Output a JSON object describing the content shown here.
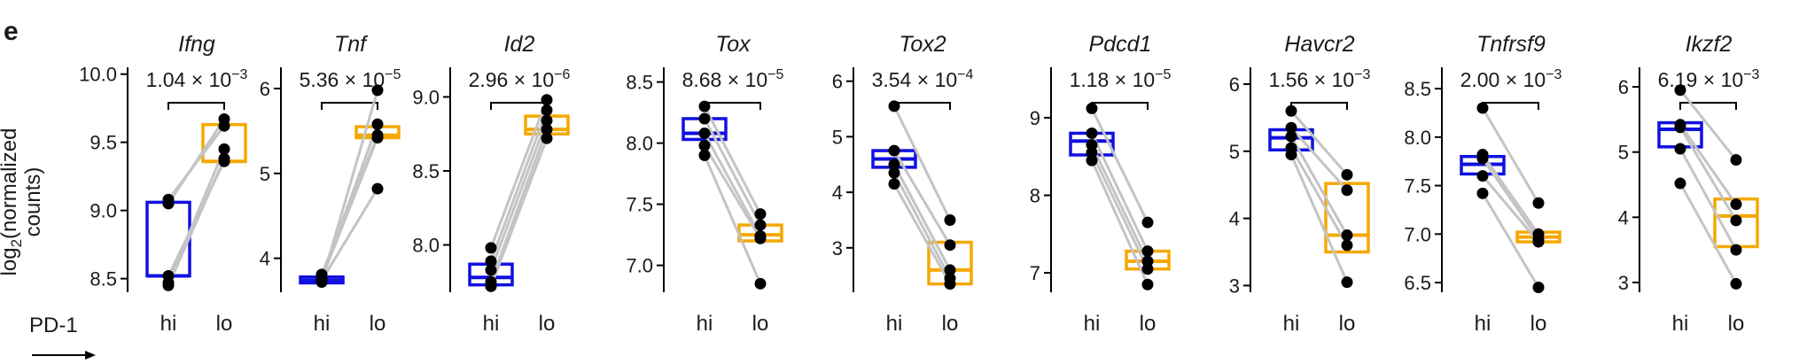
{
  "panel_label": "e",
  "ylabel_pre": "log",
  "ylabel_sub": "2",
  "ylabel_post": "(normalized",
  "ylabel_line2": "counts)",
  "group_label": "PD-1",
  "colors": {
    "hi": "#1010e0",
    "lo": "#f5a800",
    "lines": "#c4c4c4",
    "points": "#000000"
  },
  "chart_data": [
    {
      "type": "box",
      "title": "Ifng",
      "categories": [
        "hi",
        "lo"
      ],
      "ylim": [
        8.4,
        10.05
      ],
      "ticks": [
        "8.5",
        "9.0",
        "9.5",
        "10.0"
      ],
      "p_value": {
        "mantissa": "1.04",
        "times": "×",
        "base": "10",
        "exponent": "−3"
      },
      "hi": {
        "q1": 8.52,
        "median": 8.52,
        "q3": 9.06
      },
      "lo": {
        "q1": 9.36,
        "median": 9.36,
        "q3": 9.63
      },
      "pairs": [
        [
          9.08,
          9.62
        ],
        [
          9.05,
          9.67
        ],
        [
          8.47,
          9.45
        ],
        [
          8.45,
          9.38
        ],
        [
          8.52,
          9.36
        ]
      ]
    },
    {
      "type": "box",
      "title": "Tnf",
      "categories": [
        "hi",
        "lo"
      ],
      "ylim": [
        3.6,
        6.25
      ],
      "ticks": [
        "4",
        "5",
        "6"
      ],
      "p_value": {
        "mantissa": "5.36",
        "times": "×",
        "base": "10",
        "exponent": "−5"
      },
      "hi": {
        "q1": 3.71,
        "median": 3.74,
        "q3": 3.78
      },
      "lo": {
        "q1": 5.42,
        "median": 5.45,
        "q3": 5.55
      },
      "pairs": [
        [
          3.72,
          5.98
        ],
        [
          3.77,
          5.58
        ],
        [
          3.81,
          5.45
        ],
        [
          3.76,
          5.42
        ],
        [
          3.74,
          4.82
        ]
      ]
    },
    {
      "type": "box",
      "title": "Id2",
      "categories": [
        "hi",
        "lo"
      ],
      "ylim": [
        7.68,
        9.2
      ],
      "ticks": [
        "8.0",
        "8.5",
        "9.0"
      ],
      "p_value": {
        "mantissa": "2.96",
        "times": "×",
        "base": "10",
        "exponent": "−6"
      },
      "hi": {
        "q1": 7.73,
        "median": 7.78,
        "q3": 7.87
      },
      "lo": {
        "q1": 8.75,
        "median": 8.78,
        "q3": 8.87
      },
      "pairs": [
        [
          7.98,
          8.98
        ],
        [
          7.89,
          8.91
        ],
        [
          7.83,
          8.84
        ],
        [
          7.75,
          8.78
        ],
        [
          7.72,
          8.72
        ]
      ]
    },
    {
      "type": "box",
      "title": "Tox",
      "categories": [
        "hi",
        "lo"
      ],
      "ylim": [
        6.78,
        8.62
      ],
      "ticks": [
        "7.0",
        "7.5",
        "8.0",
        "8.5"
      ],
      "p_value": {
        "mantissa": "8.68",
        "times": "×",
        "base": "10",
        "exponent": "−5"
      },
      "hi": {
        "q1": 8.03,
        "median": 8.08,
        "q3": 8.2
      },
      "lo": {
        "q1": 7.2,
        "median": 7.25,
        "q3": 7.33
      },
      "pairs": [
        [
          8.3,
          7.42
        ],
        [
          8.2,
          7.33
        ],
        [
          8.08,
          7.24
        ],
        [
          7.98,
          7.22
        ],
        [
          7.9,
          6.85
        ]
      ]
    },
    {
      "type": "box",
      "title": "Tox2",
      "categories": [
        "hi",
        "lo"
      ],
      "ylim": [
        2.2,
        6.25
      ],
      "ticks": [
        "3",
        "4",
        "5",
        "6"
      ],
      "p_value": {
        "mantissa": "3.54",
        "times": "×",
        "base": "10",
        "exponent": "−4"
      },
      "hi": {
        "q1": 4.45,
        "median": 4.6,
        "q3": 4.75
      },
      "lo": {
        "q1": 2.35,
        "median": 2.6,
        "q3": 3.1
      },
      "pairs": [
        [
          5.55,
          3.5
        ],
        [
          4.75,
          3.05
        ],
        [
          4.5,
          2.6
        ],
        [
          4.35,
          2.45
        ],
        [
          4.15,
          2.35
        ]
      ]
    },
    {
      "type": "box",
      "title": "Pdcd1",
      "categories": [
        "hi",
        "lo"
      ],
      "ylim": [
        6.75,
        9.65
      ],
      "ticks": [
        "7",
        "8",
        "9"
      ],
      "p_value": {
        "mantissa": "1.18",
        "times": "×",
        "base": "10",
        "exponent": "−5"
      },
      "hi": {
        "q1": 8.52,
        "median": 8.7,
        "q3": 8.8
      },
      "lo": {
        "q1": 7.05,
        "median": 7.15,
        "q3": 7.28
      },
      "pairs": [
        [
          9.12,
          7.65
        ],
        [
          8.8,
          7.28
        ],
        [
          8.65,
          7.15
        ],
        [
          8.55,
          7.05
        ],
        [
          8.45,
          6.85
        ]
      ]
    },
    {
      "type": "box",
      "title": "Havcr2",
      "categories": [
        "hi",
        "lo"
      ],
      "ylim": [
        2.9,
        6.25
      ],
      "ticks": [
        "3",
        "4",
        "5",
        "6"
      ],
      "p_value": {
        "mantissa": "1.56",
        "times": "×",
        "base": "10",
        "exponent": "−3"
      },
      "hi": {
        "q1": 5.02,
        "median": 5.2,
        "q3": 5.32
      },
      "lo": {
        "q1": 3.5,
        "median": 3.75,
        "q3": 4.52
      },
      "pairs": [
        [
          5.6,
          4.65
        ],
        [
          5.35,
          4.42
        ],
        [
          5.22,
          3.75
        ],
        [
          5.05,
          3.6
        ],
        [
          4.95,
          3.05
        ]
      ]
    },
    {
      "type": "box",
      "title": "Tnfrsf9",
      "categories": [
        "hi",
        "lo"
      ],
      "ylim": [
        6.4,
        8.72
      ],
      "ticks": [
        "6.5",
        "7.0",
        "7.5",
        "8.0",
        "8.5"
      ],
      "p_value": {
        "mantissa": "2.00",
        "times": "×",
        "base": "10",
        "exponent": "−3"
      },
      "hi": {
        "q1": 7.62,
        "median": 7.72,
        "q3": 7.8
      },
      "lo": {
        "q1": 6.92,
        "median": 6.97,
        "q3": 7.02
      },
      "pairs": [
        [
          8.3,
          7.32
        ],
        [
          7.82,
          7.0
        ],
        [
          7.78,
          6.95
        ],
        [
          7.6,
          6.92
        ],
        [
          7.42,
          6.45
        ]
      ]
    },
    {
      "type": "box",
      "title": "Ikzf2",
      "categories": [
        "hi",
        "lo"
      ],
      "ylim": [
        2.85,
        6.3
      ],
      "ticks": [
        "3",
        "4",
        "5",
        "6"
      ],
      "p_value": {
        "mantissa": "6.19",
        "times": "×",
        "base": "10",
        "exponent": "−3"
      },
      "hi": {
        "q1": 5.08,
        "median": 5.35,
        "q3": 5.45
      },
      "lo": {
        "q1": 3.55,
        "median": 4.02,
        "q3": 4.28
      },
      "pairs": [
        [
          5.95,
          4.88
        ],
        [
          5.42,
          4.2
        ],
        [
          5.38,
          3.95
        ],
        [
          5.05,
          3.5
        ],
        [
          4.52,
          2.98
        ]
      ]
    }
  ]
}
